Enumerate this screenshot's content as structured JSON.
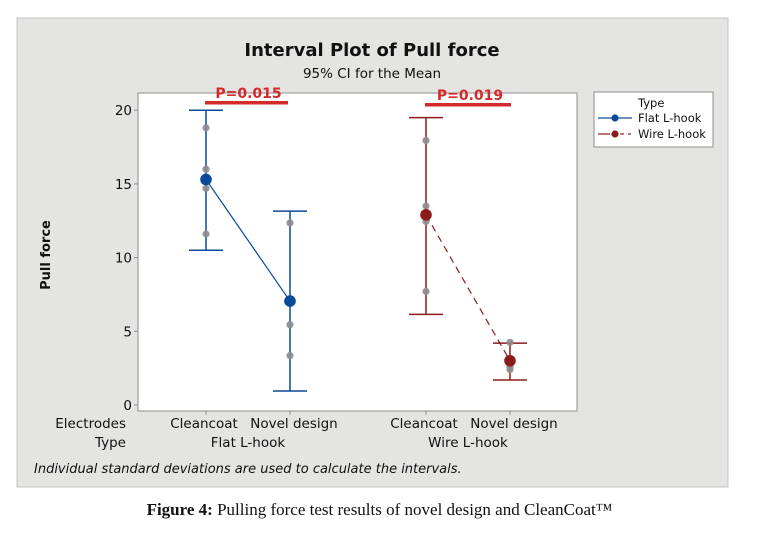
{
  "chart_data": {
    "type": "interval",
    "title": "Interval Plot of Pull force",
    "subtitle": "95% CI for the Mean",
    "ylabel": "Pull force",
    "ylim": [
      0,
      20.5
    ],
    "yticks": [
      0,
      5,
      10,
      15,
      20
    ],
    "x_factor_labels": [
      "Electrodes",
      "Type"
    ],
    "groups": [
      {
        "type": "Flat L-hook",
        "series_index": 0,
        "electrodes": [
          {
            "label": "Cleancoat",
            "mean": 15.3,
            "ci_low": 10.5,
            "ci_high": 20.0,
            "points": [
              18.8,
              16.0,
              14.7,
              11.6
            ]
          },
          {
            "label": "Novel design",
            "mean": 7.05,
            "ci_low": 0.95,
            "ci_high": 13.15,
            "points": [
              12.35,
              5.45,
              3.35
            ]
          }
        ]
      },
      {
        "type": "Wire L-hook",
        "series_index": 1,
        "electrodes": [
          {
            "label": "Cleancoat",
            "mean": 12.9,
            "ci_low": 6.15,
            "ci_high": 19.5,
            "points": [
              17.95,
              13.5,
              12.45,
              7.7
            ]
          },
          {
            "label": "Novel design",
            "mean": 3.0,
            "ci_low": 1.7,
            "ci_high": 4.2,
            "points": [
              4.25,
              2.6,
              2.4
            ]
          }
        ]
      }
    ],
    "series": [
      {
        "name": "Flat L-hook",
        "color": "#0a4a9a",
        "line_style": "solid"
      },
      {
        "name": "Wire L-hook",
        "color": "#8e1b1b",
        "line_style": "dashed"
      }
    ],
    "annotations": [
      {
        "text": "P=0.015",
        "group": 0,
        "color": "#d32a2a"
      },
      {
        "text": "P=0.019",
        "group": 1,
        "color": "#d32a2a"
      }
    ],
    "legend": {
      "title": "Type",
      "placement": "right"
    },
    "footnote": "Individual standard deviations are used to calculate the intervals.",
    "point_color": "#8c8c8c",
    "grid": false
  },
  "figure_caption": {
    "label": "Figure 4:",
    "text": " Pulling force test results of novel design and CleanCoat™"
  }
}
